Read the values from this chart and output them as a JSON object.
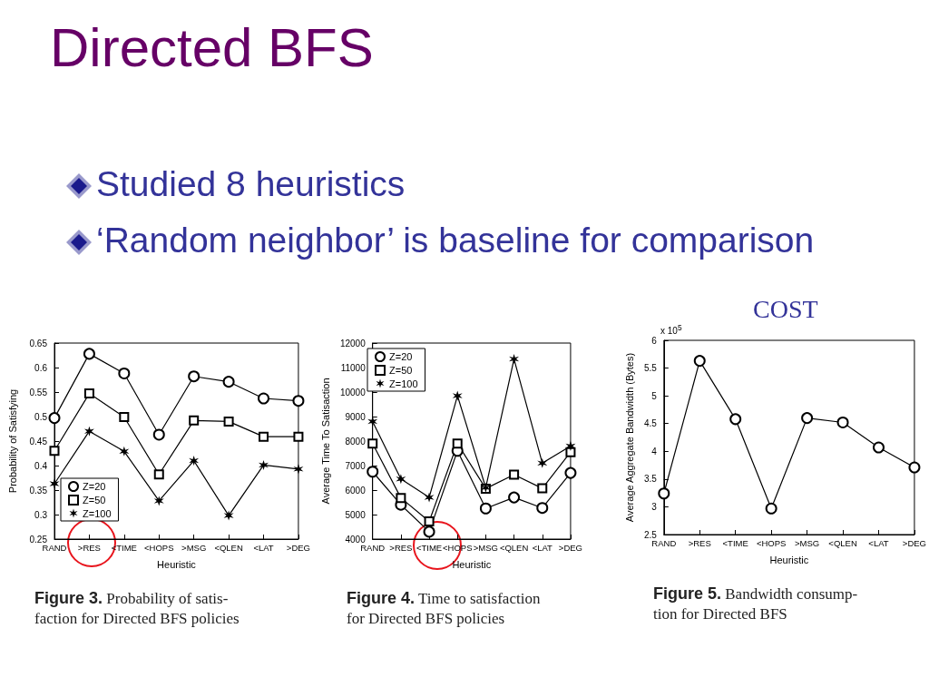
{
  "chart_data": [
    {
      "type": "line",
      "title": "Directed BFS",
      "xlabel": "Heuristic",
      "ylabel": "Probability of Satisfying",
      "categories": [
        "RAND",
        ">RES",
        "<TIME",
        "<HOPS",
        ">MSG",
        "<QLEN",
        "<LAT",
        ">DEG"
      ],
      "series": [
        {
          "name": "Z=20",
          "color": "#000000",
          "marker": "circle",
          "values": [
            0.497,
            0.628,
            0.588,
            0.463,
            0.582,
            0.571,
            0.537,
            0.532
          ]
        },
        {
          "name": "Z=50",
          "color": "#000000",
          "marker": "square",
          "values": [
            0.43,
            0.547,
            0.499,
            0.382,
            0.492,
            0.49,
            0.459,
            0.459
          ]
        },
        {
          "name": "Z=100",
          "color": "#000000",
          "marker": "cross",
          "values": [
            0.363,
            0.47,
            0.429,
            0.328,
            0.41,
            0.298,
            0.401,
            0.393
          ]
        }
      ],
      "ylim": [
        0.25,
        0.65
      ],
      "yticks": [
        0.25,
        0.3,
        0.35,
        0.4,
        0.45,
        0.5,
        0.55,
        0.6,
        0.65
      ],
      "grid": false,
      "legend": "bottom left",
      "line_style": "solid",
      "annotations": [
        "Studied 8 heuristics",
        "‘Random neighbor’ is baseline for comparison",
        "Figure 3. Probability of satis-",
        "faction for Directed BFS policies"
      ]
    },
    {
      "type": "line",
      "xlabel": "Heuristic",
      "ylabel": "Average Time To Satisaction",
      "categories": [
        "RAND",
        ">RES",
        "<TIME",
        "<HOPS",
        ">MSG",
        "<QLEN",
        "<LAT",
        ">DEG"
      ],
      "series": [
        {
          "name": "Z=20",
          "color": "#000000",
          "marker": "circle",
          "values": [
            6750,
            5400,
            4300,
            7600,
            5250,
            5700,
            5270,
            6700
          ]
        },
        {
          "name": "Z=50",
          "color": "#000000",
          "marker": "square",
          "values": [
            7900,
            5680,
            4720,
            7900,
            6060,
            6630,
            6070,
            7550
          ]
        },
        {
          "name": "Z=100",
          "color": "#000000",
          "marker": "cross",
          "values": [
            8800,
            6450,
            5700,
            9850,
            6100,
            11350,
            7100,
            7800
          ]
        }
      ],
      "ylim": [
        4000,
        12000
      ],
      "yticks": [
        4000,
        5000,
        6000,
        7000,
        8000,
        9000,
        10000,
        11000,
        12000
      ],
      "grid": false,
      "legend": "top left",
      "line_style": "solid",
      "annotations": [
        "Figure 4. Time to satisfaction",
        "for Directed BFS policies"
      ]
    },
    {
      "type": "line",
      "title": "COST",
      "xlabel": "Heuristic",
      "ylabel": "Average Aggregate Bandwidth (Bytes)",
      "categories": [
        "RAND",
        ">RES",
        "<TIME",
        "<HOPS",
        ">MSG",
        "<QLEN",
        "<LAT",
        ">DEG"
      ],
      "series": [
        {
          "color": "#000000",
          "marker": "circle",
          "values": [
            3.24,
            5.63,
            4.58,
            2.97,
            4.6,
            4.52,
            4.07,
            3.71
          ]
        }
      ],
      "ylim": [
        2.5,
        6
      ],
      "yticks": [
        2.5,
        3,
        3.5,
        4,
        4.5,
        5,
        5.5,
        6
      ],
      "grid": false,
      "legend": false,
      "line_style": "solid",
      "annotations": [
        "x 10$^{5}$",
        "Figure 5. Bandwidth consump-",
        "tion for Directed BFS"
      ]
    }
  ]
}
